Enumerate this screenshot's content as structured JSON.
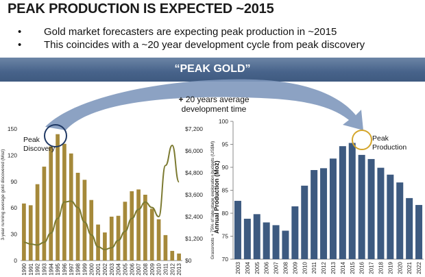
{
  "header": {
    "title": "PEAK PRODUCTION IS EXPECTED ~2015",
    "bullets": [
      "Gold market forecasters are expecting peak production in ~2015",
      "This coincides with a ~20 year development cycle from peak discovery"
    ]
  },
  "banner": {
    "label": "“PEAK GOLD”"
  },
  "annotation": {
    "plus": "+",
    "line1": "20 years average",
    "line2": "development time"
  },
  "colors": {
    "left_bars": "#a5893a",
    "left_line": "#7c7a31",
    "right_bars": "#3d5a80",
    "circle_left": "#1f3864",
    "circle_right": "#d4a52a",
    "arrow": "#7f98bd"
  },
  "chart_data": [
    {
      "type": "bar",
      "categories": [
        "1990",
        "1991",
        "1992",
        "1993",
        "1994",
        "1995",
        "1996",
        "1997",
        "1998",
        "1999",
        "2000",
        "2001",
        "2002",
        "2003",
        "2004",
        "2005",
        "2006",
        "2007",
        "2008",
        "2009",
        "2010",
        "2011",
        "2012",
        "2013"
      ],
      "series": [
        {
          "values": [
            65,
            63,
            87,
            107,
            130,
            144,
            133,
            122,
            100,
            92,
            69,
            41,
            32,
            50,
            51,
            67,
            79,
            81,
            75,
            59,
            47,
            29,
            11,
            8
          ]
        },
        {
          "values": [
            1000,
            900,
            850,
            1000,
            1500,
            2300,
            3200,
            3250,
            2900,
            2100,
            1400,
            750,
            600,
            700,
            1100,
            1600,
            2300,
            2800,
            3200,
            2900,
            2400,
            5200,
            6300,
            4300
          ]
        }
      ],
      "ylabel": "3-year running average gold discovered (Moz)",
      "y2label": "Grassroots + 75% of late-stage exploration budgets (US$M)",
      "yticks": [
        "0",
        "30",
        "60",
        "90",
        "120",
        "150"
      ],
      "y2ticks": [
        "$0",
        "$1,200",
        "$2,400",
        "$3,600",
        "$4,800",
        "$6,000",
        "$7,200"
      ],
      "ylim": [
        0,
        150
      ],
      "y2lim": [
        0,
        7200
      ],
      "annotation": "Peak Discovery"
    },
    {
      "type": "bar",
      "categories": [
        "2003",
        "2004",
        "2005",
        "2006",
        "2007",
        "2008",
        "2009",
        "2010",
        "2011",
        "2012",
        "2013",
        "2014",
        "2015",
        "2016",
        "2017",
        "2018",
        "2019",
        "2020",
        "2021",
        "2022"
      ],
      "series": [
        {
          "values": [
            82.7,
            78.8,
            79.8,
            78.0,
            77.4,
            76.2,
            81.5,
            86.0,
            89.4,
            89.8,
            91.9,
            94.6,
            95.3,
            92.7,
            91.8,
            89.9,
            88.4,
            86.7,
            83.3,
            81.8
          ]
        }
      ],
      "ylabel": "Annual Production (Moz)",
      "yticks": [
        "70",
        "75",
        "80",
        "85",
        "90",
        "95",
        "100"
      ],
      "ylim": [
        70,
        100
      ],
      "annotation": "Peak Production"
    }
  ]
}
